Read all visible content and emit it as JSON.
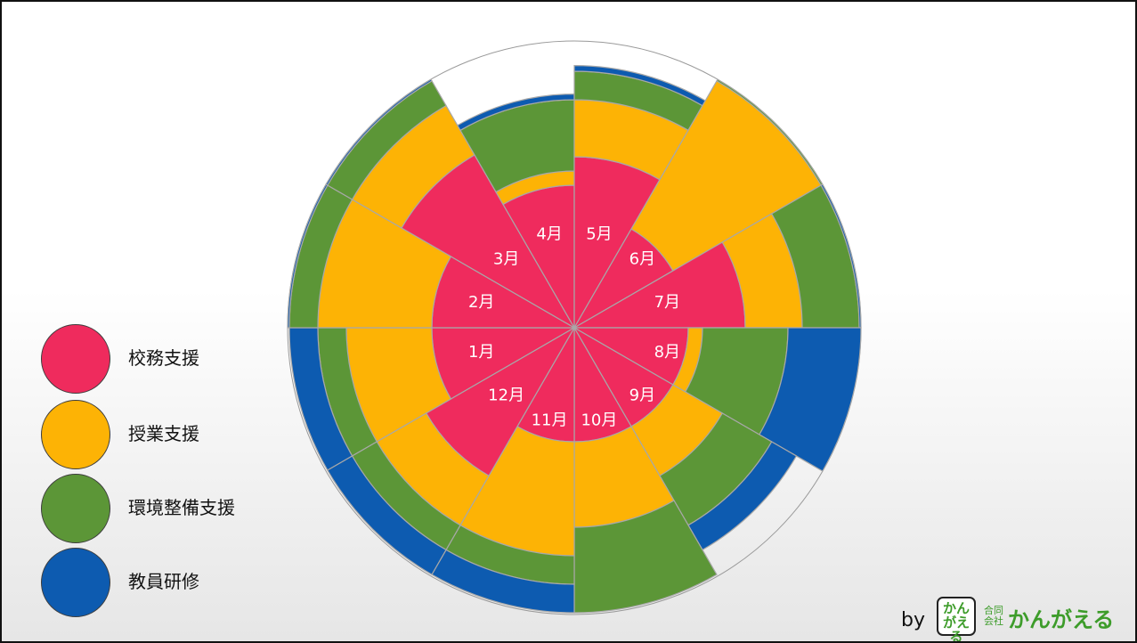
{
  "chart_data": {
    "type": "polar-area (Nightingale rose), stacked",
    "categories": [
      "1月",
      "2月",
      "3月",
      "4月",
      "5月",
      "6月",
      "7月",
      "8月",
      "9月",
      "10月",
      "11月",
      "12月"
    ],
    "series": [
      {
        "name": "校務支援",
        "color": "#ef2b5d",
        "values": [
          5,
          5,
          7,
          5,
          6,
          4,
          6,
          4,
          4,
          4,
          4,
          6
        ]
      },
      {
        "name": "授業支援",
        "color": "#fdb305",
        "values": [
          3,
          4,
          2,
          0.5,
          2,
          6,
          2,
          0.5,
          2,
          3,
          4,
          2
        ]
      },
      {
        "name": "環境整備支援",
        "color": "#5c9637",
        "values": [
          1,
          1,
          1,
          2.5,
          1,
          0.5,
          2,
          3,
          2,
          3,
          1,
          1
        ]
      },
      {
        "name": "教員研修",
        "color": "#0d5bb0",
        "values": [
          1,
          1,
          0.2,
          0.2,
          0.2,
          0,
          0.5,
          3,
          1,
          0,
          1,
          1
        ]
      }
    ],
    "legend_position": "left"
  },
  "legend": [
    {
      "label": "校務支援",
      "color": "#ef2b5d"
    },
    {
      "label": "授業支援",
      "color": "#fdb305"
    },
    {
      "label": "環境整備支援",
      "color": "#5c9637"
    },
    {
      "label": "教員研修",
      "color": "#0d5bb0"
    }
  ],
  "brand": {
    "by": "by",
    "logo_text": "かん\nがえる",
    "company_type": "合同\n会社",
    "name": "かんがえる"
  }
}
